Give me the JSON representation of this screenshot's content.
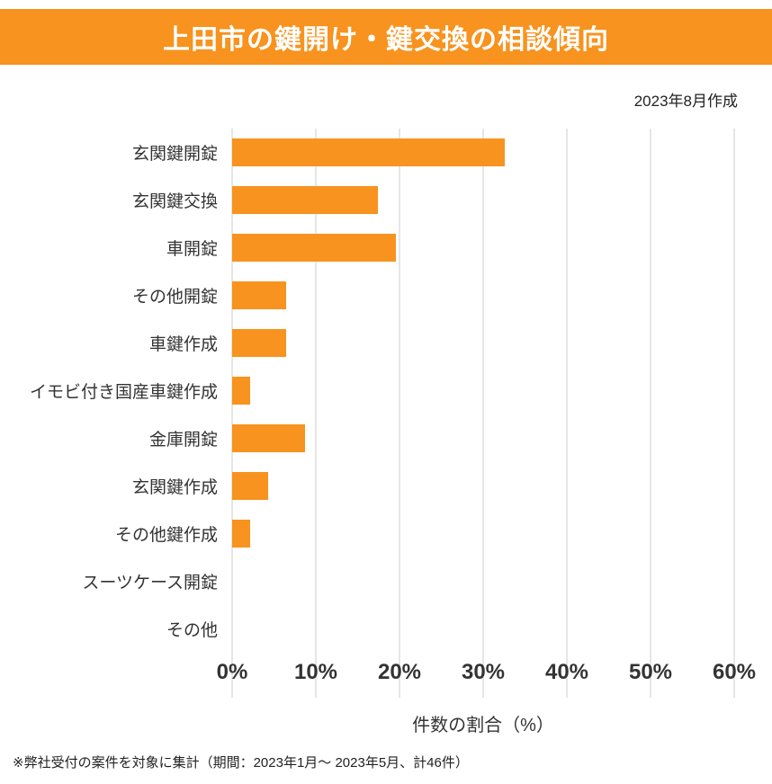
{
  "header": {
    "title": "上田市の鍵開け・鍵交換の相談傾向",
    "bg_color": "#F7931E",
    "text_color": "#FFFFFF"
  },
  "meta": {
    "created_label": "2023年8月作成"
  },
  "chart_data": {
    "type": "bar",
    "orientation": "horizontal",
    "title": "上田市の鍵開け・鍵交換の相談傾向",
    "categories": [
      "玄関鍵開錠",
      "玄関鍵交換",
      "車開錠",
      "その他開錠",
      "車鍵作成",
      "イモビ付き国産車鍵作成",
      "金庫開錠",
      "玄関鍵作成",
      "その他鍵作成",
      "スーツケース開錠",
      "その他"
    ],
    "values": [
      32.6,
      17.4,
      19.6,
      6.5,
      6.5,
      2.2,
      8.7,
      4.3,
      2.2,
      0,
      0
    ],
    "xlabel": "件数の割合（%）",
    "x_ticks": [
      "0%",
      "10%",
      "20%",
      "30%",
      "40%",
      "50%",
      "60%"
    ],
    "xlim": [
      0,
      60
    ],
    "grid": true,
    "legend": false,
    "bar_color": "#F7931E"
  },
  "footer": {
    "note": "※弊社受付の案件を対象に集計（期間：2023年1月～ 2023年5月、計46件）"
  }
}
